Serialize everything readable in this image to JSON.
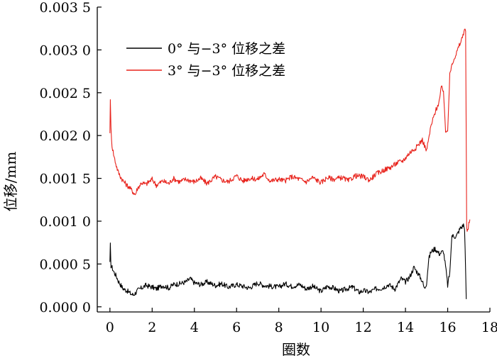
{
  "chart_data": {
    "type": "line",
    "title": "",
    "xlabel": "圈数",
    "ylabel": "位移/mm",
    "xlim": [
      -0.6,
      18
    ],
    "ylim": [
      -6e-05,
      0.0035
    ],
    "x_ticks": [
      0,
      2,
      4,
      6,
      8,
      10,
      12,
      14,
      16,
      18
    ],
    "x_tick_labels": [
      "0",
      "2",
      "4",
      "6",
      "8",
      "10",
      "12",
      "14",
      "16",
      "18"
    ],
    "y_ticks": [
      0.0,
      0.0005,
      0.001,
      0.0015,
      0.002,
      0.0025,
      0.003,
      0.0035
    ],
    "y_tick_labels": [
      "0.000 0",
      "0.000 5",
      "0.001 0",
      "0.001 5",
      "0.002 0",
      "0.002 5",
      "0.003 0",
      "0.003 5"
    ],
    "grid": false,
    "legend_position": "top-left",
    "series": [
      {
        "name": "0° 与−3° 位移之差",
        "color": "#000000",
        "x": [
          0.0,
          0.02,
          0.05,
          0.1,
          0.2,
          0.3,
          0.4,
          0.5,
          0.6,
          0.7,
          0.8,
          0.9,
          1.0,
          1.1,
          1.2,
          1.3,
          1.5,
          1.7,
          2.0,
          2.2,
          2.5,
          2.8,
          3.0,
          3.3,
          3.6,
          3.8,
          4.0,
          4.3,
          4.6,
          5.0,
          5.3,
          5.6,
          6.0,
          6.3,
          6.6,
          7.0,
          7.3,
          7.6,
          8.0,
          8.3,
          8.6,
          9.0,
          9.3,
          9.6,
          10.0,
          10.3,
          10.6,
          10.9,
          11.2,
          11.5,
          11.8,
          12.0,
          12.3,
          12.6,
          12.9,
          13.2,
          13.5,
          13.8,
          14.0,
          14.2,
          14.4,
          14.6,
          14.8,
          14.9,
          15.0,
          15.1,
          15.2,
          15.4,
          15.6,
          15.8,
          15.9,
          16.0,
          16.1,
          16.2,
          16.4,
          16.5,
          16.6,
          16.7,
          16.75,
          16.8,
          16.85,
          16.88
        ],
        "y": [
          0.0005,
          0.00072,
          0.00048,
          0.00046,
          0.0004,
          0.00036,
          0.0003,
          0.00026,
          0.00022,
          0.0002,
          0.00019,
          0.00017,
          0.00015,
          0.00014,
          0.00016,
          0.00019,
          0.00022,
          0.00025,
          0.00023,
          0.00021,
          0.00025,
          0.00022,
          0.00026,
          0.00027,
          0.00029,
          0.00033,
          0.00028,
          0.00026,
          0.00029,
          0.00025,
          0.00027,
          0.00023,
          0.00026,
          0.00024,
          0.00022,
          0.00028,
          0.00025,
          0.00024,
          0.00023,
          0.00027,
          0.00024,
          0.00026,
          0.00021,
          0.00024,
          0.00018,
          0.00024,
          0.00022,
          0.00018,
          0.00021,
          0.00023,
          0.00017,
          0.00019,
          0.00017,
          0.00021,
          0.00022,
          0.00026,
          0.00021,
          0.00033,
          0.00029,
          0.00035,
          0.00046,
          0.00039,
          0.0003,
          0.00021,
          0.00028,
          0.00055,
          0.00064,
          0.00068,
          0.00062,
          0.00065,
          0.00047,
          0.00025,
          0.0004,
          0.00083,
          0.00082,
          0.00087,
          0.00092,
          0.00094,
          0.00096,
          0.0009,
          0.00045,
          9e-05
        ]
      },
      {
        "name": "3° 与−3° 位移之差",
        "color": "#e8231c",
        "x": [
          0.0,
          0.02,
          0.05,
          0.1,
          0.2,
          0.3,
          0.4,
          0.5,
          0.6,
          0.7,
          0.8,
          0.9,
          1.0,
          1.1,
          1.2,
          1.3,
          1.5,
          1.7,
          2.0,
          2.2,
          2.5,
          2.8,
          3.0,
          3.3,
          3.6,
          4.0,
          4.3,
          4.6,
          5.0,
          5.3,
          5.6,
          6.0,
          6.3,
          6.6,
          7.0,
          7.3,
          7.6,
          8.0,
          8.3,
          8.6,
          9.0,
          9.3,
          9.6,
          10.0,
          10.3,
          10.6,
          11.0,
          11.3,
          11.6,
          12.0,
          12.3,
          12.6,
          13.0,
          13.3,
          13.6,
          13.9,
          14.2,
          14.5,
          14.8,
          15.0,
          15.2,
          15.4,
          15.6,
          15.7,
          15.8,
          15.9,
          16.0,
          16.1,
          16.2,
          16.3,
          16.4,
          16.5,
          16.6,
          16.7,
          16.8,
          16.85,
          16.9,
          16.95,
          17.0,
          17.05
        ],
        "y": [
          0.00205,
          0.0024,
          0.00208,
          0.00188,
          0.00175,
          0.00165,
          0.00157,
          0.00152,
          0.00148,
          0.00145,
          0.00142,
          0.0014,
          0.00137,
          0.00134,
          0.00131,
          0.00138,
          0.00145,
          0.00143,
          0.00149,
          0.00142,
          0.00147,
          0.00144,
          0.0015,
          0.00146,
          0.00149,
          0.00146,
          0.0015,
          0.00144,
          0.00152,
          0.00148,
          0.00146,
          0.00153,
          0.00147,
          0.0015,
          0.00149,
          0.00155,
          0.00147,
          0.00149,
          0.00147,
          0.00152,
          0.00149,
          0.00146,
          0.00151,
          0.00145,
          0.00151,
          0.00149,
          0.00151,
          0.00147,
          0.00153,
          0.00152,
          0.00148,
          0.00155,
          0.0016,
          0.00163,
          0.00168,
          0.00171,
          0.0018,
          0.00186,
          0.00195,
          0.00182,
          0.0021,
          0.00227,
          0.0024,
          0.00256,
          0.00252,
          0.00206,
          0.00205,
          0.0027,
          0.00284,
          0.0029,
          0.00295,
          0.00302,
          0.00308,
          0.00315,
          0.00325,
          0.00322,
          0.0009,
          0.00088,
          0.00096,
          0.00102
        ]
      }
    ]
  }
}
